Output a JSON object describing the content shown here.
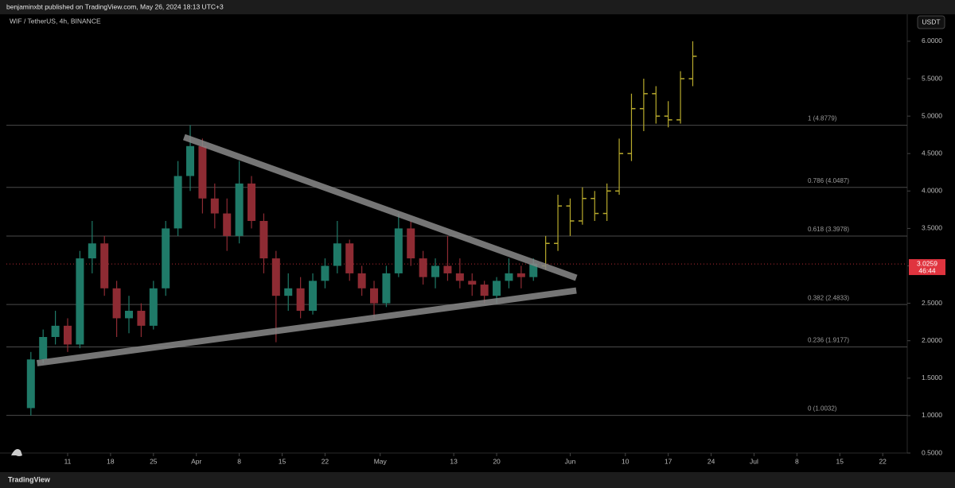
{
  "header": "benjaminxbt published on TradingView.com, May 26, 2024 18:13 UTC+3",
  "footer": "TradingView",
  "chart_data": {
    "type": "candlestick",
    "symbol": "WIF / TetherUS, 4h, BINANCE",
    "currency_button": "USDT",
    "xlim": [
      "Mar 1",
      "Jul 26"
    ],
    "xticks": [
      {
        "value": "Mar 11",
        "label": "11"
      },
      {
        "value": "Mar 18",
        "label": "18"
      },
      {
        "value": "Mar 25",
        "label": "25"
      },
      {
        "value": "Apr 1",
        "label": "Apr"
      },
      {
        "value": "Apr 8",
        "label": "8"
      },
      {
        "value": "Apr 15",
        "label": "15"
      },
      {
        "value": "Apr 22",
        "label": "22"
      },
      {
        "value": "May 1",
        "label": "May"
      },
      {
        "value": "May 13",
        "label": "13"
      },
      {
        "value": "May 20",
        "label": "20"
      },
      {
        "value": "Jun 1",
        "label": "Jun"
      },
      {
        "value": "Jun 10",
        "label": "10"
      },
      {
        "value": "Jun 17",
        "label": "17"
      },
      {
        "value": "Jun 24",
        "label": "24"
      },
      {
        "value": "Jul 1",
        "label": "Jul"
      },
      {
        "value": "Jul 8",
        "label": "8"
      },
      {
        "value": "Jul 15",
        "label": "15"
      },
      {
        "value": "Jul 22",
        "label": "22"
      }
    ],
    "ylim": [
      0.5,
      6.36
    ],
    "yticks": [
      {
        "value": 0.5,
        "label": "0.5000"
      },
      {
        "value": 1,
        "label": "1.0000"
      },
      {
        "value": 1.5,
        "label": "1.5000"
      },
      {
        "value": 2,
        "label": "2.0000"
      },
      {
        "value": 2.5,
        "label": "2.5000"
      },
      {
        "value": 3,
        "label": "3.0000"
      },
      {
        "value": 3.5,
        "label": "3.5000"
      },
      {
        "value": 4,
        "label": "4.0000"
      },
      {
        "value": 4.5,
        "label": "4.5000"
      },
      {
        "value": 5,
        "label": "5.0000"
      },
      {
        "value": 5.5,
        "label": "5.5000"
      },
      {
        "value": 6,
        "label": "6.0000"
      }
    ],
    "candles": {
      "up_color": "#1f7a68",
      "down_color": "#8e2b33",
      "x": [
        "Mar 5",
        "Mar 7",
        "Mar 9",
        "Mar 11",
        "Mar 13",
        "Mar 15",
        "Mar 17",
        "Mar 19",
        "Mar 21",
        "Mar 23",
        "Mar 25",
        "Mar 27",
        "Mar 29",
        "Mar 31",
        "Apr 2",
        "Apr 4",
        "Apr 6",
        "Apr 8",
        "Apr 10",
        "Apr 12",
        "Apr 14",
        "Apr 16",
        "Apr 18",
        "Apr 20",
        "Apr 22",
        "Apr 24",
        "Apr 26",
        "Apr 28",
        "Apr 30",
        "May 2",
        "May 4",
        "May 6",
        "May 8",
        "May 10",
        "May 12",
        "May 14",
        "May 16",
        "May 18",
        "May 20",
        "May 22",
        "May 24",
        "May 26"
      ],
      "open": [
        1.1,
        1.75,
        2.05,
        2.2,
        1.95,
        3.1,
        3.3,
        2.7,
        2.3,
        2.4,
        2.2,
        2.7,
        3.5,
        4.2,
        4.6,
        3.9,
        3.7,
        3.4,
        4.1,
        3.6,
        3.1,
        2.6,
        2.7,
        2.4,
        2.8,
        3.0,
        3.3,
        2.9,
        2.7,
        2.5,
        2.9,
        3.5,
        3.1,
        2.85,
        3.0,
        2.9,
        2.8,
        2.75,
        2.6,
        2.8,
        2.9,
        2.85
      ],
      "high": [
        1.85,
        2.15,
        2.4,
        2.3,
        3.2,
        3.6,
        3.4,
        2.8,
        2.6,
        2.5,
        2.8,
        3.6,
        4.4,
        4.88,
        4.7,
        4.1,
        3.9,
        4.4,
        4.2,
        3.7,
        3.2,
        2.9,
        2.85,
        2.9,
        3.1,
        3.6,
        3.35,
        3.0,
        2.8,
        3.0,
        3.7,
        3.6,
        3.2,
        3.1,
        3.4,
        3.1,
        2.9,
        2.8,
        2.85,
        3.1,
        3.0,
        3.1
      ],
      "low": [
        1.0,
        1.7,
        1.95,
        1.85,
        1.9,
        2.9,
        2.6,
        2.05,
        2.1,
        2.05,
        2.15,
        2.6,
        3.4,
        4.0,
        3.7,
        3.5,
        3.2,
        3.3,
        3.5,
        2.9,
        1.98,
        2.4,
        2.3,
        2.35,
        2.7,
        2.9,
        2.8,
        2.6,
        2.3,
        2.45,
        2.85,
        3.0,
        2.75,
        2.7,
        2.8,
        2.7,
        2.6,
        2.5,
        2.5,
        2.7,
        2.7,
        2.8
      ],
      "close": [
        1.75,
        2.05,
        2.2,
        1.95,
        3.1,
        3.3,
        2.7,
        2.3,
        2.4,
        2.2,
        2.7,
        3.5,
        4.2,
        4.6,
        3.9,
        3.7,
        3.4,
        4.1,
        3.6,
        3.1,
        2.6,
        2.7,
        2.4,
        2.8,
        3.0,
        3.3,
        2.9,
        2.7,
        2.5,
        2.9,
        3.5,
        3.1,
        2.85,
        3.0,
        2.9,
        2.8,
        2.75,
        2.6,
        2.8,
        2.9,
        2.85,
        3.03
      ]
    },
    "projection": {
      "color": "#b8aa2c",
      "x": [
        "May 28",
        "May 30",
        "Jun 1",
        "Jun 3",
        "Jun 5",
        "Jun 7",
        "Jun 9",
        "Jun 11",
        "Jun 13",
        "Jun 15",
        "Jun 17",
        "Jun 19",
        "Jun 21"
      ],
      "open": [
        3.0,
        3.3,
        3.8,
        3.6,
        3.9,
        3.7,
        4.0,
        4.5,
        5.1,
        5.3,
        5.0,
        4.95,
        5.5
      ],
      "high": [
        3.4,
        3.95,
        3.9,
        4.05,
        4.0,
        4.1,
        4.7,
        5.3,
        5.5,
        5.4,
        5.2,
        5.6,
        6.0
      ],
      "low": [
        2.95,
        3.2,
        3.4,
        3.55,
        3.6,
        3.6,
        3.95,
        4.4,
        4.8,
        4.9,
        4.85,
        4.9,
        5.4
      ],
      "close": [
        3.3,
        3.8,
        3.6,
        3.9,
        3.7,
        4.0,
        4.5,
        5.1,
        5.3,
        5.0,
        4.95,
        5.5,
        5.8
      ]
    },
    "fib_levels": [
      {
        "value": 4.8779,
        "label": "1 (4.8779)"
      },
      {
        "value": 4.0487,
        "label": "0.786 (4.0487)"
      },
      {
        "value": 3.3978,
        "label": "0.618 (3.3978)"
      },
      {
        "value": 2.4833,
        "label": "0.382 (2.4833)"
      },
      {
        "value": 1.9177,
        "label": "0.236 (1.9177)"
      },
      {
        "value": 1.0032,
        "label": "0 (1.0032)"
      }
    ],
    "trendlines": [
      {
        "start": [
          "Mar 30",
          4.72
        ],
        "end": [
          "Jun 2",
          2.84
        ]
      },
      {
        "start": [
          "Mar 6",
          1.7
        ],
        "end": [
          "Jun 2",
          2.67
        ]
      }
    ],
    "last_price": {
      "value": 3.0259,
      "label": "3.0259",
      "color": "#e0343f"
    },
    "countdown": "46:44"
  }
}
